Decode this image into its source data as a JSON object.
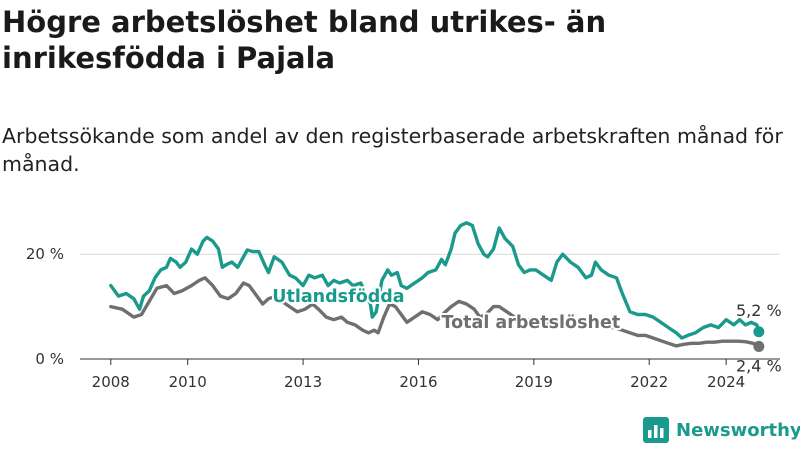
{
  "title": "Högre arbetslöshet bland utrikes- än inrikesfödda i Pajala",
  "subtitle": "Arbetssökande som andel av den registerbaserade arbetskraften månad för månad.",
  "logo": {
    "text": "Newsworthy",
    "icon": "bar-chart-logo-icon",
    "color": "#1a9a8c"
  },
  "chart_data": {
    "type": "line",
    "ylim": [
      0,
      25
    ],
    "yticks": [
      {
        "value": 0,
        "label": "0 %"
      },
      {
        "value": 20,
        "label": "20 %"
      }
    ],
    "xticks": [
      {
        "value": 2008,
        "label": "2008"
      },
      {
        "value": 2010,
        "label": "2010"
      },
      {
        "value": 2013,
        "label": "2013"
      },
      {
        "value": 2016,
        "label": "2016"
      },
      {
        "value": 2019,
        "label": "2019"
      },
      {
        "value": 2022,
        "label": "2022"
      },
      {
        "value": 2024,
        "label": "2024"
      }
    ],
    "xlim": [
      2007.2,
      2025.4
    ],
    "grid": true,
    "series": [
      {
        "name": "Utlandsfödda",
        "color": "#1a9a8c",
        "end_label": "5,2 %",
        "points": [
          [
            2008.0,
            14.0
          ],
          [
            2008.2,
            12.0
          ],
          [
            2008.4,
            12.5
          ],
          [
            2008.6,
            11.5
          ],
          [
            2008.75,
            9.5
          ],
          [
            2008.85,
            12.0
          ],
          [
            2009.0,
            13.0
          ],
          [
            2009.15,
            15.5
          ],
          [
            2009.3,
            17.0
          ],
          [
            2009.45,
            17.5
          ],
          [
            2009.55,
            19.2
          ],
          [
            2009.7,
            18.5
          ],
          [
            2009.8,
            17.5
          ],
          [
            2009.95,
            18.5
          ],
          [
            2010.1,
            21.0
          ],
          [
            2010.25,
            20.0
          ],
          [
            2010.4,
            22.5
          ],
          [
            2010.5,
            23.2
          ],
          [
            2010.65,
            22.5
          ],
          [
            2010.8,
            21.0
          ],
          [
            2010.9,
            17.5
          ],
          [
            2011.0,
            18.0
          ],
          [
            2011.15,
            18.5
          ],
          [
            2011.3,
            17.5
          ],
          [
            2011.45,
            19.5
          ],
          [
            2011.55,
            20.8
          ],
          [
            2011.7,
            20.5
          ],
          [
            2011.85,
            20.5
          ],
          [
            2012.0,
            18.0
          ],
          [
            2012.1,
            16.5
          ],
          [
            2012.25,
            19.5
          ],
          [
            2012.45,
            18.5
          ],
          [
            2012.65,
            16.0
          ],
          [
            2012.8,
            15.5
          ],
          [
            2013.0,
            14.0
          ],
          [
            2013.15,
            16.0
          ],
          [
            2013.3,
            15.5
          ],
          [
            2013.5,
            16.0
          ],
          [
            2013.65,
            14.0
          ],
          [
            2013.8,
            15.0
          ],
          [
            2013.95,
            14.5
          ],
          [
            2014.15,
            15.0
          ],
          [
            2014.3,
            14.0
          ],
          [
            2014.5,
            14.5
          ],
          [
            2014.65,
            12.0
          ],
          [
            2014.75,
            10.5
          ],
          [
            2014.8,
            8.0
          ],
          [
            2014.9,
            9.0
          ],
          [
            2015.05,
            15.0
          ],
          [
            2015.2,
            17.0
          ],
          [
            2015.3,
            16.0
          ],
          [
            2015.45,
            16.5
          ],
          [
            2015.55,
            14.0
          ],
          [
            2015.7,
            13.5
          ],
          [
            2015.9,
            14.5
          ],
          [
            2016.1,
            15.5
          ],
          [
            2016.25,
            16.5
          ],
          [
            2016.45,
            17.0
          ],
          [
            2016.6,
            19.0
          ],
          [
            2016.7,
            18.0
          ],
          [
            2016.85,
            21.0
          ],
          [
            2016.95,
            24.0
          ],
          [
            2017.1,
            25.5
          ],
          [
            2017.25,
            26.0
          ],
          [
            2017.4,
            25.5
          ],
          [
            2017.55,
            22.0
          ],
          [
            2017.7,
            20.0
          ],
          [
            2017.8,
            19.5
          ],
          [
            2017.95,
            21.0
          ],
          [
            2018.1,
            25.0
          ],
          [
            2018.25,
            23.0
          ],
          [
            2018.45,
            21.5
          ],
          [
            2018.6,
            18.0
          ],
          [
            2018.75,
            16.5
          ],
          [
            2018.9,
            17.0
          ],
          [
            2019.05,
            17.0
          ],
          [
            2019.25,
            16.0
          ],
          [
            2019.45,
            15.0
          ],
          [
            2019.6,
            18.5
          ],
          [
            2019.75,
            20.0
          ],
          [
            2019.95,
            18.5
          ],
          [
            2020.15,
            17.5
          ],
          [
            2020.35,
            15.5
          ],
          [
            2020.5,
            16.0
          ],
          [
            2020.6,
            18.5
          ],
          [
            2020.75,
            17.0
          ],
          [
            2020.95,
            16.0
          ],
          [
            2021.15,
            15.5
          ],
          [
            2021.3,
            12.5
          ],
          [
            2021.5,
            9.0
          ],
          [
            2021.7,
            8.5
          ],
          [
            2021.9,
            8.5
          ],
          [
            2022.1,
            8.0
          ],
          [
            2022.3,
            7.0
          ],
          [
            2022.5,
            6.0
          ],
          [
            2022.7,
            5.0
          ],
          [
            2022.85,
            4.0
          ],
          [
            2023.0,
            4.5
          ],
          [
            2023.2,
            5.0
          ],
          [
            2023.4,
            6.0
          ],
          [
            2023.6,
            6.5
          ],
          [
            2023.8,
            6.0
          ],
          [
            2024.0,
            7.5
          ],
          [
            2024.2,
            6.5
          ],
          [
            2024.35,
            7.5
          ],
          [
            2024.5,
            6.5
          ],
          [
            2024.65,
            7.0
          ],
          [
            2024.8,
            6.5
          ],
          [
            2024.85,
            5.2
          ]
        ]
      },
      {
        "name": "Total arbetslöshet",
        "color": "#6f6e70",
        "end_label": "2,4 %",
        "points": [
          [
            2008.0,
            10.0
          ],
          [
            2008.3,
            9.5
          ],
          [
            2008.6,
            8.0
          ],
          [
            2008.8,
            8.5
          ],
          [
            2009.0,
            11.0
          ],
          [
            2009.2,
            13.5
          ],
          [
            2009.45,
            14.0
          ],
          [
            2009.65,
            12.5
          ],
          [
            2009.85,
            13.0
          ],
          [
            2010.1,
            14.0
          ],
          [
            2010.3,
            15.0
          ],
          [
            2010.45,
            15.5
          ],
          [
            2010.65,
            14.0
          ],
          [
            2010.85,
            12.0
          ],
          [
            2011.05,
            11.5
          ],
          [
            2011.25,
            12.5
          ],
          [
            2011.45,
            14.5
          ],
          [
            2011.6,
            14.0
          ],
          [
            2011.8,
            12.0
          ],
          [
            2011.95,
            10.5
          ],
          [
            2012.1,
            11.5
          ],
          [
            2012.3,
            12.0
          ],
          [
            2012.45,
            11.0
          ],
          [
            2012.65,
            10.0
          ],
          [
            2012.85,
            9.0
          ],
          [
            2013.05,
            9.5
          ],
          [
            2013.25,
            10.5
          ],
          [
            2013.4,
            9.5
          ],
          [
            2013.6,
            8.0
          ],
          [
            2013.8,
            7.5
          ],
          [
            2014.0,
            8.0
          ],
          [
            2014.15,
            7.0
          ],
          [
            2014.35,
            6.5
          ],
          [
            2014.55,
            5.5
          ],
          [
            2014.7,
            5.0
          ],
          [
            2014.85,
            5.5
          ],
          [
            2014.95,
            5.0
          ],
          [
            2015.1,
            8.0
          ],
          [
            2015.25,
            10.5
          ],
          [
            2015.4,
            10.0
          ],
          [
            2015.55,
            8.5
          ],
          [
            2015.7,
            7.0
          ],
          [
            2015.9,
            8.0
          ],
          [
            2016.1,
            9.0
          ],
          [
            2016.3,
            8.5
          ],
          [
            2016.5,
            7.5
          ],
          [
            2016.7,
            9.0
          ],
          [
            2016.85,
            10.0
          ],
          [
            2017.05,
            11.0
          ],
          [
            2017.25,
            10.5
          ],
          [
            2017.45,
            9.5
          ],
          [
            2017.6,
            8.0
          ],
          [
            2017.75,
            8.5
          ],
          [
            2017.95,
            10.0
          ],
          [
            2018.1,
            10.0
          ],
          [
            2018.3,
            9.0
          ],
          [
            2018.5,
            8.0
          ],
          [
            2018.7,
            7.5
          ],
          [
            2018.9,
            7.5
          ],
          [
            2019.1,
            7.5
          ],
          [
            2019.3,
            6.5
          ],
          [
            2019.5,
            7.0
          ],
          [
            2019.7,
            7.5
          ],
          [
            2019.9,
            7.0
          ],
          [
            2020.1,
            7.0
          ],
          [
            2020.3,
            6.5
          ],
          [
            2020.5,
            6.5
          ],
          [
            2020.7,
            6.5
          ],
          [
            2020.9,
            6.0
          ],
          [
            2021.1,
            6.0
          ],
          [
            2021.3,
            5.5
          ],
          [
            2021.5,
            5.0
          ],
          [
            2021.7,
            4.5
          ],
          [
            2021.9,
            4.5
          ],
          [
            2022.1,
            4.0
          ],
          [
            2022.3,
            3.5
          ],
          [
            2022.5,
            3.0
          ],
          [
            2022.7,
            2.5
          ],
          [
            2022.9,
            2.8
          ],
          [
            2023.1,
            3.0
          ],
          [
            2023.3,
            3.0
          ],
          [
            2023.5,
            3.2
          ],
          [
            2023.7,
            3.2
          ],
          [
            2023.9,
            3.4
          ],
          [
            2024.1,
            3.4
          ],
          [
            2024.3,
            3.4
          ],
          [
            2024.5,
            3.3
          ],
          [
            2024.7,
            3.0
          ],
          [
            2024.85,
            2.4
          ]
        ]
      }
    ]
  }
}
